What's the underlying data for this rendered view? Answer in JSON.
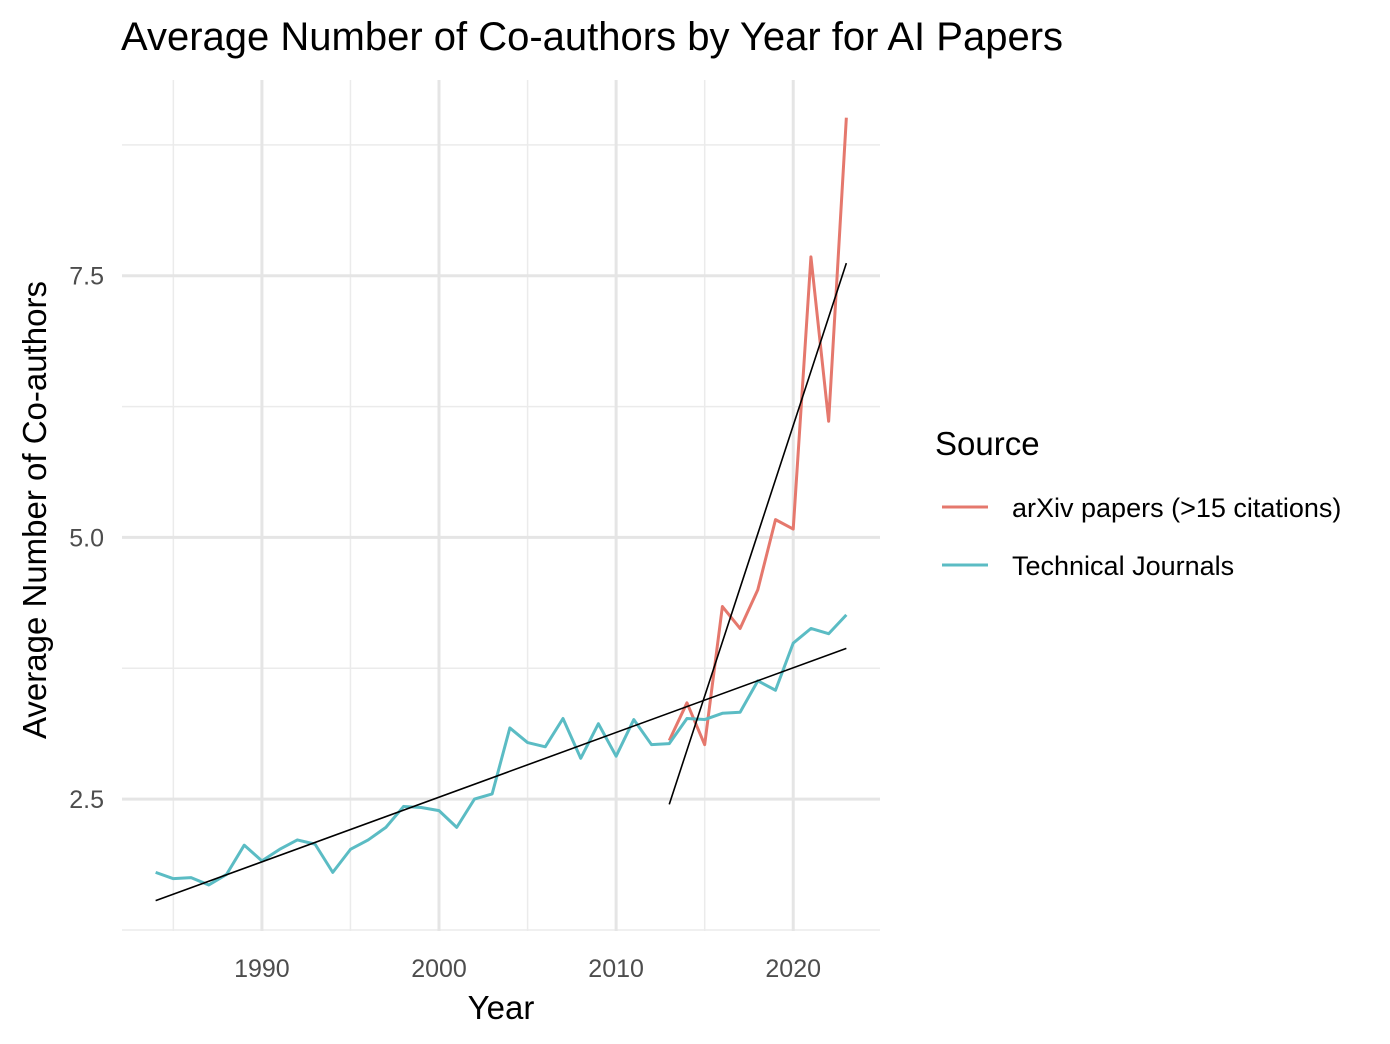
{
  "chart_data": {
    "type": "line",
    "title": "Average Number of Co-authors by Year for AI Papers",
    "xlabel": "Year",
    "ylabel": "Average Number of Co-authors",
    "xlim": [
      1982.1,
      2024.9
    ],
    "ylim": [
      1.24,
      9.37
    ],
    "x_ticks": [
      1990,
      2000,
      2010,
      2020
    ],
    "x_tick_labels": [
      "1990",
      "2000",
      "2010",
      "2020"
    ],
    "y_ticks": [
      2.5,
      5.0,
      7.5
    ],
    "y_tick_labels": [
      "2.5",
      "5.0",
      "7.5"
    ],
    "y_minor": [
      1.25,
      3.75,
      6.25,
      8.75
    ],
    "x_minor": [
      1985,
      1995,
      2005,
      2015
    ],
    "grid": true,
    "legend": {
      "title": "Source",
      "placement": "right"
    },
    "series": [
      {
        "name": "arXiv papers (>15 citations)",
        "color": "#e5786d",
        "x": [
          2013,
          2014,
          2015,
          2016,
          2017,
          2018,
          2019,
          2020,
          2021,
          2022,
          2023
        ],
        "y": [
          3.06,
          3.42,
          3.02,
          4.34,
          4.13,
          4.5,
          5.17,
          5.08,
          7.68,
          6.11,
          9.01
        ],
        "trend": {
          "x": [
            2013,
            2023
          ],
          "y": [
            2.45,
            7.62
          ]
        }
      },
      {
        "name": "Technical Journals",
        "color": "#5bbcc4",
        "x": [
          1984,
          1985,
          1986,
          1987,
          1988,
          1989,
          1990,
          1991,
          1992,
          1993,
          1994,
          1995,
          1996,
          1997,
          1998,
          1999,
          2000,
          2001,
          2002,
          2003,
          2004,
          2005,
          2006,
          2007,
          2008,
          2009,
          2010,
          2011,
          2012,
          2013,
          2014,
          2015,
          2016,
          2017,
          2018,
          2019,
          2020,
          2021,
          2022,
          2023
        ],
        "y": [
          1.8,
          1.74,
          1.75,
          1.68,
          1.78,
          2.06,
          1.91,
          2.02,
          2.11,
          2.07,
          1.8,
          2.02,
          2.11,
          2.23,
          2.43,
          2.42,
          2.39,
          2.23,
          2.5,
          2.55,
          3.18,
          3.04,
          3.0,
          3.27,
          2.89,
          3.22,
          2.91,
          3.26,
          3.02,
          3.03,
          3.27,
          3.26,
          3.32,
          3.33,
          3.63,
          3.54,
          3.99,
          4.13,
          4.08,
          4.26
        ],
        "trend": {
          "x": [
            1984,
            2023
          ],
          "y": [
            1.53,
            3.94
          ]
        }
      }
    ]
  }
}
